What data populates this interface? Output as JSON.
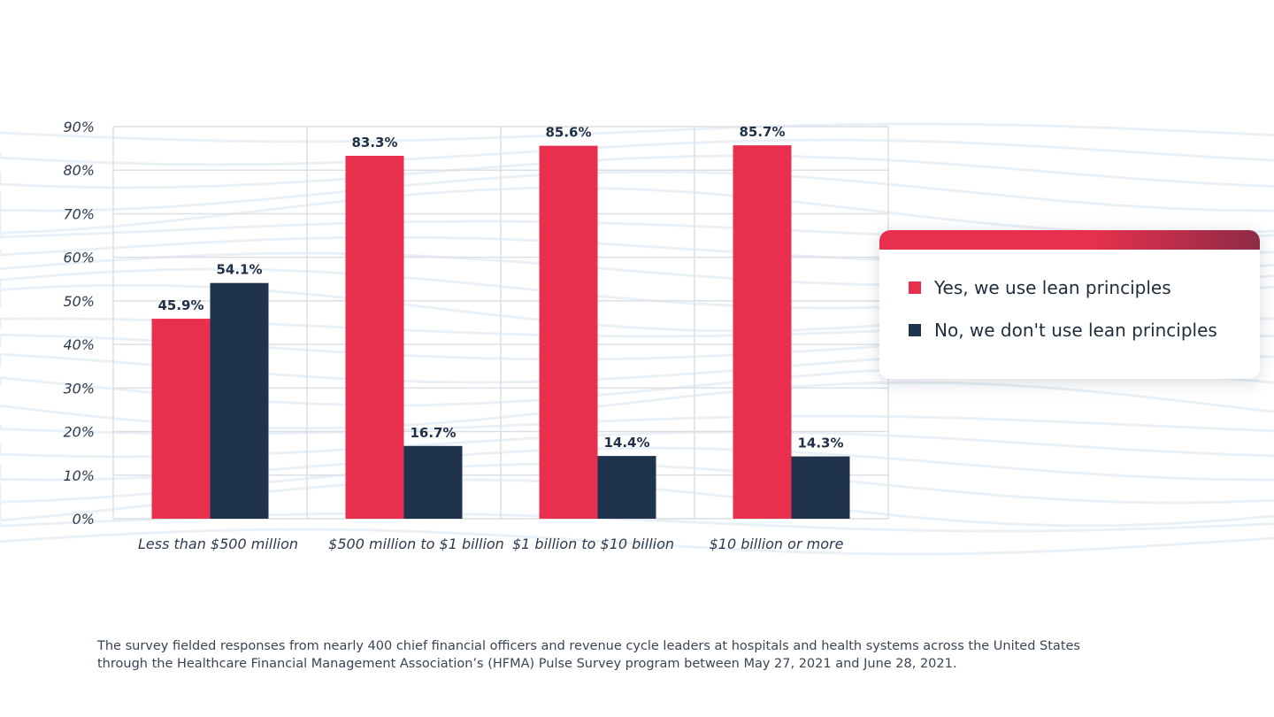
{
  "colors": {
    "yes": "#e8304e",
    "no": "#1f334d",
    "grid": "#dcdfe4",
    "legend_gradient_start": "#e8304e",
    "legend_gradient_end": "#8e2b46"
  },
  "chart_data": {
    "type": "bar",
    "title": "",
    "xlabel": "",
    "ylabel": "",
    "ylim": [
      0,
      90
    ],
    "y_ticks": [
      "0%",
      "10%",
      "20%",
      "30%",
      "40%",
      "50%",
      "60%",
      "70%",
      "80%",
      "90%"
    ],
    "grid": true,
    "legend_position": "right",
    "categories": [
      "Less than $500 million",
      "$500 million to $1 billion",
      "$1 billion to $10 billion",
      "$10 billion or more"
    ],
    "series": [
      {
        "name": "Yes, we use lean principles",
        "values": [
          45.9,
          83.3,
          85.6,
          85.7
        ],
        "labels": [
          "45.9%",
          "83.3%",
          "85.6%",
          "85.7%"
        ]
      },
      {
        "name": "No, we don't use lean principles",
        "values": [
          54.1,
          16.7,
          14.4,
          14.3
        ],
        "labels": [
          "54.1%",
          "16.7%",
          "14.4%",
          "14.3%"
        ]
      }
    ]
  },
  "legend": {
    "yes_label": "Yes, we use lean principles",
    "no_label": "No, we don't use lean principles"
  },
  "footnote": {
    "line1": "The survey fielded responses from nearly 400 chief financial officers and revenue cycle leaders at hospitals and health systems across the United States",
    "line2": "through the Healthcare Financial Management Association’s (HFMA) Pulse Survey program between May 27, 2021 and June 28, 2021."
  }
}
